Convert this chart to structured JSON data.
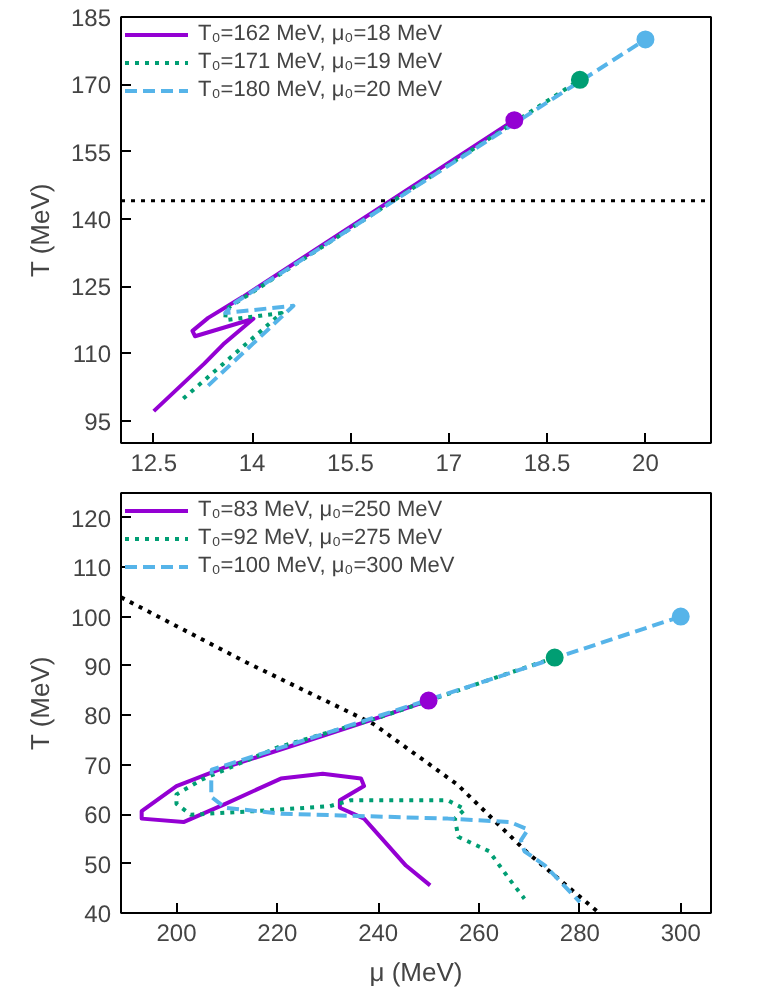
{
  "chart_data": [
    {
      "type": "line",
      "ylabel": "T (MeV)",
      "xlim": [
        12,
        21
      ],
      "ylim": [
        90,
        185
      ],
      "xticks": [
        12.5,
        14,
        15.5,
        17,
        18.5,
        20
      ],
      "yticks": [
        95,
        110,
        125,
        140,
        155,
        170,
        185
      ],
      "grid": false,
      "legend": "top left",
      "ref_lines": [
        {
          "axis": "y",
          "value": 144,
          "color": "#000000",
          "line_style": "dotted"
        }
      ],
      "series": [
        {
          "name": "T₀=162 MeV, μ₀=18 MeV",
          "color": "#9400d3",
          "line_style": "solid",
          "x": [
            12.5,
            13.27,
            13.56,
            14.02,
            13.13,
            13.09,
            13.33,
            13.86,
            18.0
          ],
          "values": [
            97.1,
            107.7,
            112.0,
            117.7,
            113.8,
            115.0,
            117.9,
            122.6,
            162
          ]
        },
        {
          "name": "T₀=171 MeV, μ₀=19 MeV",
          "color": "#009e73",
          "line_style": "dotted",
          "x": [
            12.95,
            14.45,
            13.59,
            13.6,
            19.0
          ],
          "values": [
            99.9,
            119.0,
            117.4,
            119.8,
            171
          ]
        },
        {
          "name": "T₀=180 MeV, μ₀=20 MeV",
          "color": "#56b4e9",
          "line_style": "dashed",
          "x": [
            13.33,
            14.63,
            13.59,
            13.75,
            20.0
          ],
          "values": [
            102.8,
            120.6,
            119.0,
            121.4,
            180
          ]
        },
        {
          "type": "scatter",
          "marker": "circle",
          "color": "#9400d3",
          "x": [
            18
          ],
          "values": [
            162
          ]
        },
        {
          "type": "scatter",
          "marker": "circle",
          "color": "#009e73",
          "x": [
            19
          ],
          "values": [
            171
          ]
        },
        {
          "type": "scatter",
          "marker": "circle",
          "color": "#56b4e9",
          "x": [
            20
          ],
          "values": [
            180
          ]
        }
      ]
    },
    {
      "type": "line",
      "xlabel": "μ (MeV)",
      "ylabel": "T (MeV)",
      "xlim": [
        189,
        306
      ],
      "ylim": [
        40,
        125
      ],
      "xticks": [
        200,
        220,
        240,
        260,
        280,
        300
      ],
      "yticks": [
        40,
        50,
        60,
        70,
        80,
        90,
        100,
        110,
        120
      ],
      "grid": false,
      "legend": "top left",
      "series": [
        {
          "color": "#000000",
          "line_style": "dotted",
          "x": [
            189,
            213.9,
            239,
            255.7,
            269.6,
            283.6
          ],
          "values": [
            103.9,
            90.7,
            78.3,
            66,
            52.2,
            40.2
          ]
        },
        {
          "name": "T₀=83 MeV, μ₀=250 MeV",
          "color": "#9400d3",
          "line_style": "solid",
          "x": [
            250,
            237.2,
            223.4,
            209.7,
            200,
            193.1,
            193.1,
            201.4,
            209.7,
            220.7,
            229,
            236.6,
            237.2,
            232.4,
            232.4,
            237.2,
            241.4,
            245.5,
            250.3
          ],
          "values": [
            83,
            78.6,
            74.0,
            69.5,
            65.7,
            60.6,
            59.1,
            58.4,
            62.1,
            67.2,
            68.2,
            67.2,
            65.7,
            62.8,
            61.3,
            59.1,
            54.3,
            49.6,
            45.6
          ]
        },
        {
          "name": "T₀=92 MeV, μ₀=275 MeV",
          "color": "#009e73",
          "line_style": "dotted",
          "x": [
            275,
            240,
            220,
            205,
            200,
            200,
            202.8,
            215.2,
            230.3,
            234.5,
            253.8,
            257.2,
            255.2,
            255.9,
            262,
            266.2,
            269
          ],
          "values": [
            91.7,
            79.5,
            73.5,
            67,
            64,
            62.1,
            59.9,
            60.6,
            61.6,
            62.8,
            62.8,
            61,
            59.1,
            55.4,
            52.5,
            46.6,
            42.9
          ]
        },
        {
          "name": "T₀=100 MeV, μ₀=300 MeV",
          "color": "#56b4e9",
          "line_style": "dashed",
          "x": [
            300,
            260,
            230,
            207,
            206.9,
            206.9,
            209.7,
            220.7,
            253.8,
            266.2,
            269.7,
            268.3,
            269,
            273.1,
            280
          ],
          "values": [
            100,
            86.5,
            76.5,
            69,
            66.5,
            63.5,
            61.3,
            60.1,
            59.1,
            58.4,
            56.9,
            54.7,
            52.5,
            49.6,
            42.2
          ]
        },
        {
          "type": "scatter",
          "marker": "circle",
          "color": "#9400d3",
          "x": [
            250
          ],
          "values": [
            83
          ]
        },
        {
          "type": "scatter",
          "marker": "circle",
          "color": "#009e73",
          "x": [
            275
          ],
          "values": [
            91.7
          ]
        },
        {
          "type": "scatter",
          "marker": "circle",
          "color": "#56b4e9",
          "x": [
            300
          ],
          "values": [
            100
          ]
        }
      ]
    }
  ]
}
